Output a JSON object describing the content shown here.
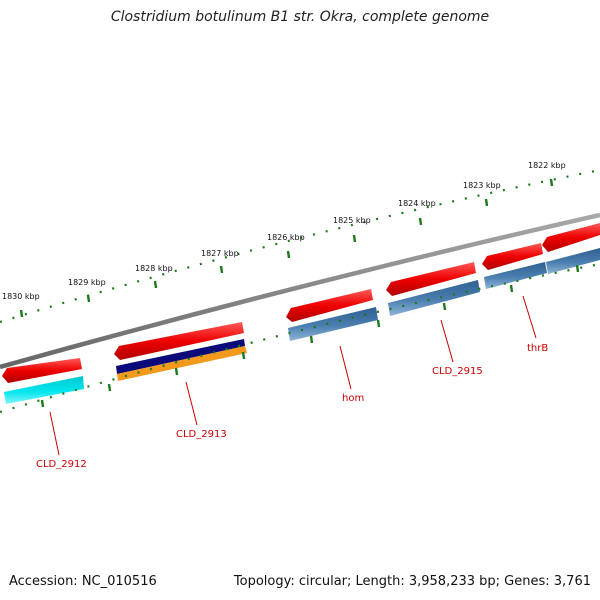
{
  "title": "Clostridium botulinum B1 str. Okra, complete genome",
  "footer": {
    "accession": "Accession: NC_010516",
    "stats": "Topology: circular; Length: 3,958,233 bp; Genes: 3,761"
  },
  "ruler": {
    "labels": [
      "1830 kbp",
      "1829 kbp",
      "1828 kbp",
      "1827 kbp",
      "1826 kbp",
      "1825 kbp",
      "1824 kbp",
      "1823 kbp",
      "1822 kbp"
    ]
  },
  "genes": [
    {
      "label": "CLD_2912"
    },
    {
      "label": "CLD_2913"
    },
    {
      "label": "hom"
    },
    {
      "label": "CLD_2915"
    },
    {
      "label": "thrB"
    }
  ],
  "colors": {
    "backbone": "#808080",
    "gene_arrow": "#ee0000",
    "cds_steelblue": "#4a7fb0",
    "cds_cyan": "#00e6ee",
    "cds_navy": "#0a0a7a",
    "cds_orange": "#f39a1c",
    "ticks": "#1a7a1a",
    "label_text": "#cc0000"
  }
}
